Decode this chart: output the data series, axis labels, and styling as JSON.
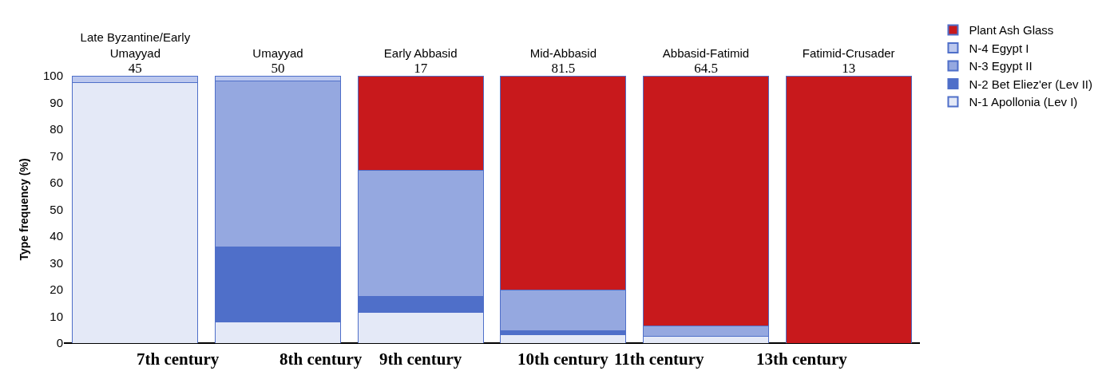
{
  "chart_data": {
    "type": "bar",
    "stacked": true,
    "categories": [
      "Late Byzantine/Early Umayyad\n45",
      "Umayyad\n50",
      "Early Abbasid\n17",
      "Mid-Abbasid\n81.5",
      "Abbasid-Fatimid\n64.5",
      "Fatimid-Crusader\n13"
    ],
    "series": [
      {
        "name": "N-1 Apollonia (Lev I)",
        "color": "#e4e9f7",
        "values": [
          97.5,
          8,
          11.5,
          3,
          2.5,
          0
        ]
      },
      {
        "name": "N-2 Bet Eliez'er (Lev II)",
        "color": "#4f6fc9",
        "values": [
          0,
          28,
          6,
          1.5,
          0,
          0
        ]
      },
      {
        "name": "N-3 Egypt II",
        "color": "#95a8e0",
        "values": [
          0,
          62,
          47,
          15.5,
          4,
          0
        ]
      },
      {
        "name": "N-4 Egypt I",
        "color": "#bcc8ee",
        "values": [
          2.5,
          2,
          0,
          0,
          0,
          0
        ]
      },
      {
        "name": "Plant Ash Glass",
        "color": "#c8191c",
        "values": [
          0,
          0,
          35.5,
          80,
          93.5,
          100
        ]
      }
    ],
    "ylabel": "Type frequency (%)",
    "ylim": [
      0,
      100
    ],
    "yticks": [
      0,
      10,
      20,
      30,
      40,
      50,
      60,
      70,
      80,
      90,
      100
    ],
    "annotations": [
      "7th century",
      "8th century",
      "9th century",
      "10th century",
      "11th century",
      "13th century"
    ],
    "grid": false,
    "legend": "top right"
  }
}
